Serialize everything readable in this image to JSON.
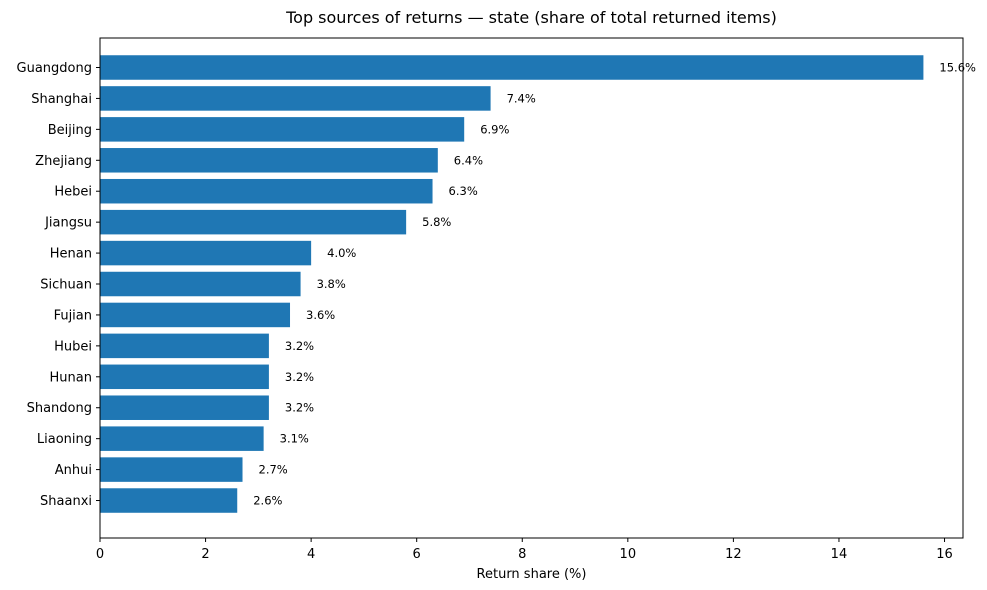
{
  "chart_data": {
    "type": "bar",
    "orientation": "horizontal",
    "title": "Top sources of returns — state (share of total returned items)",
    "xlabel": "Return share (%)",
    "ylabel": "",
    "xlim": [
      0,
      16.35
    ],
    "xticks": [
      0,
      2,
      4,
      6,
      8,
      10,
      12,
      14,
      16
    ],
    "grid": false,
    "bar_color": "#1f77b4",
    "categories": [
      "Guangdong",
      "Shanghai",
      "Beijing",
      "Zhejiang",
      "Hebei",
      "Jiangsu",
      "Henan",
      "Sichuan",
      "Fujian",
      "Hubei",
      "Hunan",
      "Shandong",
      "Liaoning",
      "Anhui",
      "Shaanxi"
    ],
    "values": [
      15.6,
      7.4,
      6.9,
      6.4,
      6.3,
      5.8,
      4.0,
      3.8,
      3.6,
      3.2,
      3.2,
      3.2,
      3.1,
      2.7,
      2.6
    ],
    "data_labels": [
      "15.6%",
      "7.4%",
      "6.9%",
      "6.4%",
      "6.3%",
      "5.8%",
      "4.0%",
      "3.8%",
      "3.6%",
      "3.2%",
      "3.2%",
      "3.2%",
      "3.1%",
      "2.7%",
      "2.6%"
    ]
  }
}
